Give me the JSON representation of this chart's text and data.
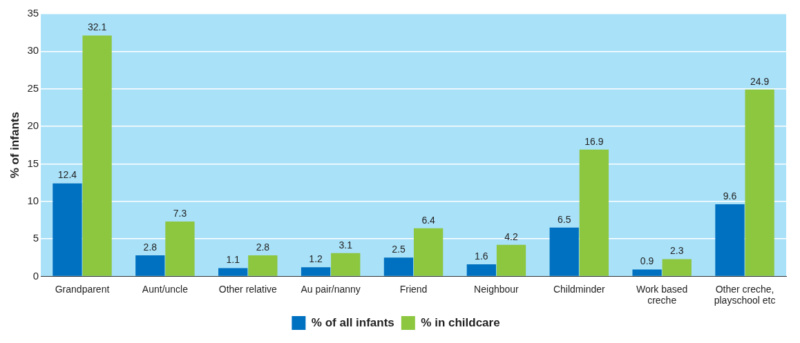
{
  "chart_data": {
    "type": "bar",
    "ylabel": "% of infants",
    "categories": [
      "Grandparent",
      "Aunt/uncle",
      "Other relative",
      "Au pair/nanny",
      "Friend",
      "Neighbour",
      "Childminder",
      "Work based creche",
      "Other creche, playschool etc"
    ],
    "series": [
      {
        "name": "% of all infants",
        "color": "#0070c0",
        "values": [
          12.4,
          2.8,
          1.1,
          1.2,
          2.5,
          1.6,
          6.5,
          0.9,
          9.6
        ]
      },
      {
        "name": "% in childcare",
        "color": "#8dc63f",
        "values": [
          32.1,
          7.3,
          2.8,
          3.1,
          6.4,
          4.2,
          16.9,
          2.3,
          24.9
        ]
      }
    ],
    "ylim": [
      0,
      35
    ],
    "yticks": [
      0,
      5,
      10,
      15,
      20,
      25,
      30,
      35
    ],
    "grid": "y",
    "legend": "bottom",
    "data_labels": true
  }
}
